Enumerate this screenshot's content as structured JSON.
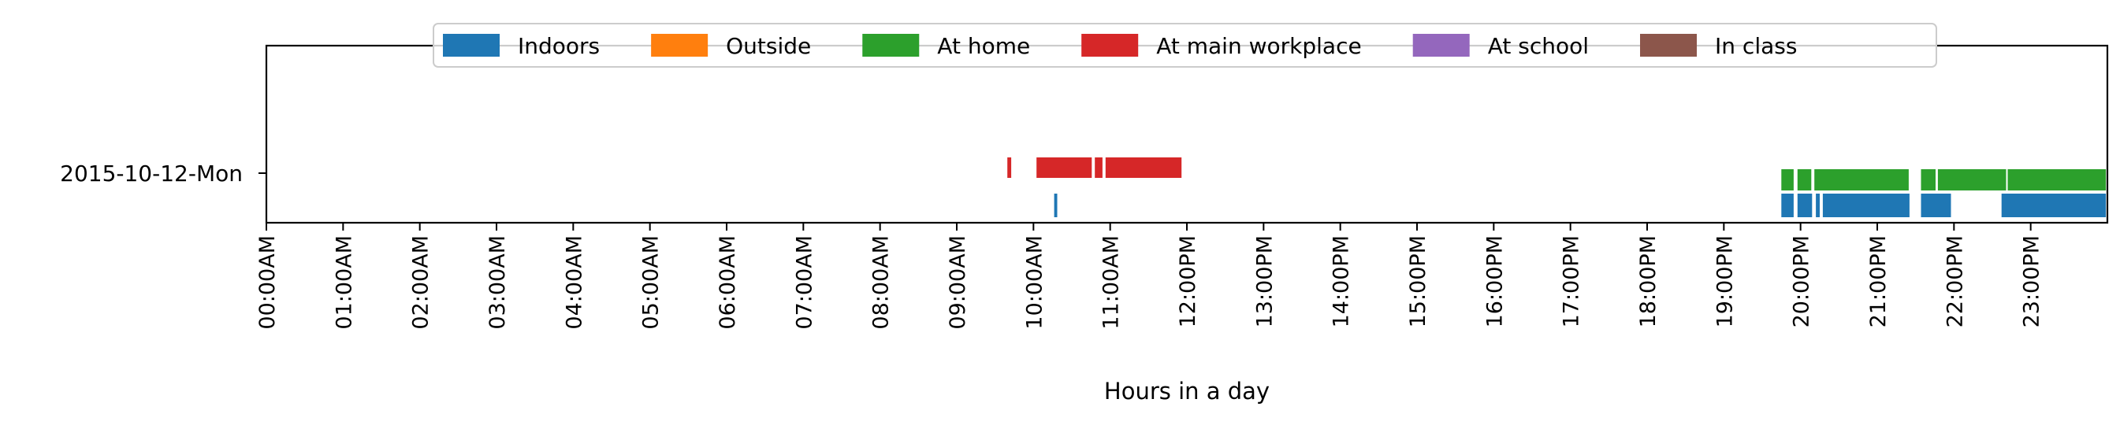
{
  "chart_data": {
    "type": "timeline",
    "title": "",
    "xlabel": "Hours in a day",
    "ylabel": "",
    "xlim": [
      0,
      24
    ],
    "x_unit": "hours",
    "x_ticks": [
      {
        "value": 0,
        "label": "00:00AM"
      },
      {
        "value": 1,
        "label": "01:00AM"
      },
      {
        "value": 2,
        "label": "02:00AM"
      },
      {
        "value": 3,
        "label": "03:00AM"
      },
      {
        "value": 4,
        "label": "04:00AM"
      },
      {
        "value": 5,
        "label": "05:00AM"
      },
      {
        "value": 6,
        "label": "06:00AM"
      },
      {
        "value": 7,
        "label": "07:00AM"
      },
      {
        "value": 8,
        "label": "08:00AM"
      },
      {
        "value": 9,
        "label": "09:00AM"
      },
      {
        "value": 10,
        "label": "10:00AM"
      },
      {
        "value": 11,
        "label": "11:00AM"
      },
      {
        "value": 12,
        "label": "12:00PM"
      },
      {
        "value": 13,
        "label": "13:00PM"
      },
      {
        "value": 14,
        "label": "14:00PM"
      },
      {
        "value": 15,
        "label": "15:00PM"
      },
      {
        "value": 16,
        "label": "16:00PM"
      },
      {
        "value": 17,
        "label": "17:00PM"
      },
      {
        "value": 18,
        "label": "18:00PM"
      },
      {
        "value": 19,
        "label": "19:00PM"
      },
      {
        "value": 20,
        "label": "20:00PM"
      },
      {
        "value": 21,
        "label": "21:00PM"
      },
      {
        "value": 22,
        "label": "22:00PM"
      },
      {
        "value": 23,
        "label": "23:00PM"
      }
    ],
    "rows": [
      "2015-10-12-Mon"
    ],
    "legend_position": "top-center",
    "grid": false,
    "series": [
      {
        "name": "Indoors",
        "color": "#1f77b4",
        "segments": [
          [
            10.27,
            10.31
          ],
          [
            19.75,
            19.91
          ],
          [
            19.96,
            20.15
          ],
          [
            20.2,
            20.25
          ],
          [
            20.29,
            21.42
          ],
          [
            21.57,
            21.96
          ],
          [
            22.62,
            23.98
          ]
        ]
      },
      {
        "name": "Outside",
        "color": "#ff7f0e",
        "segments": []
      },
      {
        "name": "At home",
        "color": "#2ca02c",
        "segments": [
          [
            19.75,
            19.91
          ],
          [
            19.96,
            20.14
          ],
          [
            20.18,
            21.41
          ],
          [
            21.57,
            21.76
          ],
          [
            21.79,
            22.68
          ],
          [
            22.7,
            23.98
          ]
        ]
      },
      {
        "name": "At main workplace",
        "color": "#d62728",
        "segments": [
          [
            9.66,
            9.71
          ],
          [
            10.04,
            10.76
          ],
          [
            10.8,
            10.9
          ],
          [
            10.94,
            11.93
          ]
        ]
      },
      {
        "name": "At school",
        "color": "#9467bd",
        "segments": []
      },
      {
        "name": "In class",
        "color": "#8c564b",
        "segments": []
      }
    ]
  }
}
